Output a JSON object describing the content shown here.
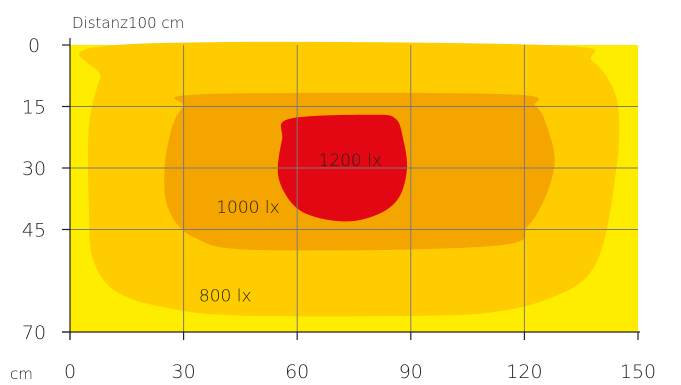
{
  "chart_data": {
    "type": "heatmap",
    "title": "Distanz100 cm",
    "x_unit": "cm",
    "x_ticks": [
      0,
      30,
      60,
      90,
      120,
      150
    ],
    "y_ticks": [
      0,
      15,
      30,
      45,
      70
    ],
    "xlim": [
      0,
      150
    ],
    "ylim": [
      0,
      70
    ],
    "grid": true,
    "zones": [
      {
        "label": "800 lx",
        "color": "#ffcc00",
        "outline_xy": [
          [
            12,
            0
          ],
          [
            126,
            0
          ],
          [
            138,
            4
          ],
          [
            144,
            12
          ],
          [
            145,
            22
          ],
          [
            144,
            32
          ],
          [
            141,
            48
          ],
          [
            136,
            57
          ],
          [
            126,
            62
          ],
          [
            113,
            65
          ],
          [
            95,
            66
          ],
          [
            45,
            66
          ],
          [
            25,
            64
          ],
          [
            12,
            60
          ],
          [
            6,
            52
          ],
          [
            5,
            40
          ],
          [
            5,
            20
          ],
          [
            8,
            8
          ]
        ]
      },
      {
        "label": "1000 lx",
        "color": "#f5a500",
        "outline_xy": [
          [
            35,
            12
          ],
          [
            115,
            12
          ],
          [
            123,
            15
          ],
          [
            126,
            20
          ],
          [
            128,
            28
          ],
          [
            126,
            36
          ],
          [
            121,
            44
          ],
          [
            112,
            49
          ],
          [
            50,
            50
          ],
          [
            33,
            47
          ],
          [
            26,
            40
          ],
          [
            25,
            30
          ],
          [
            27,
            20
          ],
          [
            30,
            15
          ]
        ]
      },
      {
        "label": "1200 lx",
        "color": "#e30613",
        "outline_xy": [
          [
            58,
            18
          ],
          [
            80,
            17
          ],
          [
            86,
            18
          ],
          [
            88,
            23
          ],
          [
            89,
            30
          ],
          [
            87,
            37
          ],
          [
            82,
            41
          ],
          [
            74,
            43
          ],
          [
            65,
            42
          ],
          [
            59,
            39
          ],
          [
            55,
            32
          ],
          [
            56,
            23
          ]
        ]
      }
    ],
    "background_color": "#ffed00",
    "grid_color": "#7a7a7a"
  }
}
